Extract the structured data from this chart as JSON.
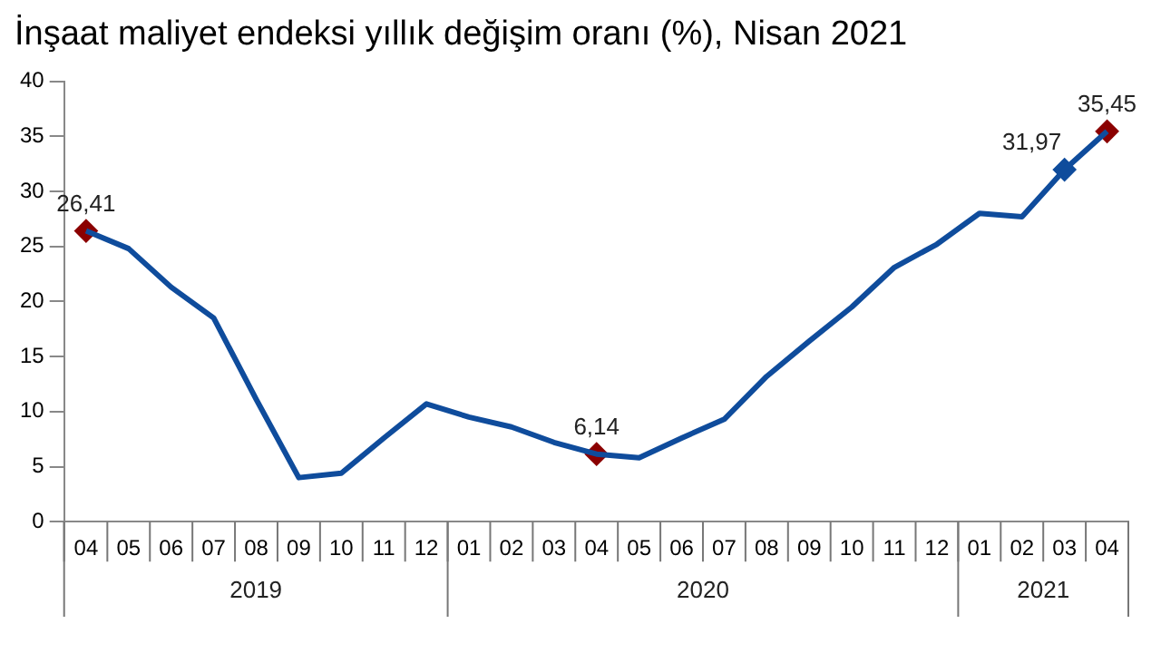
{
  "chart_data": {
    "type": "line",
    "title": "İnşaat maliyet endeksi yıllık değişim oranı (%), Nisan 2021",
    "x": [
      "2019-04",
      "2019-05",
      "2019-06",
      "2019-07",
      "2019-08",
      "2019-09",
      "2019-10",
      "2019-11",
      "2019-12",
      "2020-01",
      "2020-02",
      "2020-03",
      "2020-04",
      "2020-05",
      "2020-06",
      "2020-07",
      "2020-08",
      "2020-09",
      "2020-10",
      "2020-11",
      "2020-12",
      "2021-01",
      "2021-02",
      "2021-03",
      "2021-04"
    ],
    "xticks": [
      {
        "value": "2019-04",
        "label": "04"
      },
      {
        "value": "2019-05",
        "label": "05"
      },
      {
        "value": "2019-06",
        "label": "06"
      },
      {
        "value": "2019-07",
        "label": "07"
      },
      {
        "value": "2019-08",
        "label": "08"
      },
      {
        "value": "2019-09",
        "label": "09"
      },
      {
        "value": "2019-10",
        "label": "10"
      },
      {
        "value": "2019-11",
        "label": "11"
      },
      {
        "value": "2019-12",
        "label": "12"
      },
      {
        "value": "2020-01",
        "label": "01"
      },
      {
        "value": "2020-02",
        "label": "02"
      },
      {
        "value": "2020-03",
        "label": "03"
      },
      {
        "value": "2020-04",
        "label": "04"
      },
      {
        "value": "2020-05",
        "label": "05"
      },
      {
        "value": "2020-06",
        "label": "06"
      },
      {
        "value": "2020-07",
        "label": "07"
      },
      {
        "value": "2020-08",
        "label": "08"
      },
      {
        "value": "2020-09",
        "label": "09"
      },
      {
        "value": "2020-10",
        "label": "10"
      },
      {
        "value": "2020-11",
        "label": "11"
      },
      {
        "value": "2020-12",
        "label": "12"
      },
      {
        "value": "2021-01",
        "label": "01"
      },
      {
        "value": "2021-02",
        "label": "02"
      },
      {
        "value": "2021-03",
        "label": "03"
      },
      {
        "value": "2021-04",
        "label": "04"
      }
    ],
    "xlim": [
      "2019-03-16",
      "2021-04-16"
    ],
    "annotations": [
      "2019",
      "2020",
      "2021"
    ],
    "series": [
      {
        "color": "#0f4c9c",
        "marker": "none",
        "values": [
          26.41,
          24.8,
          21.3,
          18.5,
          11.1,
          4.0,
          4.4,
          7.6,
          10.7,
          9.5,
          8.6,
          7.2,
          6.14,
          5.8,
          7.6,
          9.3,
          13.2,
          16.4,
          19.5,
          23.1,
          25.2,
          28.0,
          27.7,
          31.97,
          35.45
        ]
      },
      {
        "type": "scatter",
        "color": "#8b0000",
        "values": [
          26.41,
          null,
          null,
          null,
          null,
          null,
          null,
          null,
          null,
          null,
          null,
          null,
          6.14,
          null,
          null,
          null,
          null,
          null,
          null,
          null,
          null,
          null,
          null,
          31.97,
          35.45
        ],
        "value_labels": [
          "26,41",
          null,
          null,
          null,
          null,
          null,
          null,
          null,
          null,
          null,
          null,
          null,
          "6,14",
          null,
          null,
          null,
          null,
          null,
          null,
          null,
          null,
          null,
          null,
          "31,97",
          "35,45"
        ],
        "colors": [
          "#8b0000",
          null,
          null,
          null,
          null,
          null,
          null,
          null,
          null,
          null,
          null,
          null,
          "#8b0000",
          null,
          null,
          null,
          null,
          null,
          null,
          null,
          null,
          null,
          null,
          "#0f4c9c",
          "#8b0000"
        ]
      }
    ],
    "ylim": [
      0,
      40
    ],
    "yticks": [
      0,
      5,
      10,
      15,
      20,
      25,
      30,
      35,
      40
    ],
    "marker": "diamond",
    "line_style": "solid",
    "grid": false,
    "legend": false
  }
}
